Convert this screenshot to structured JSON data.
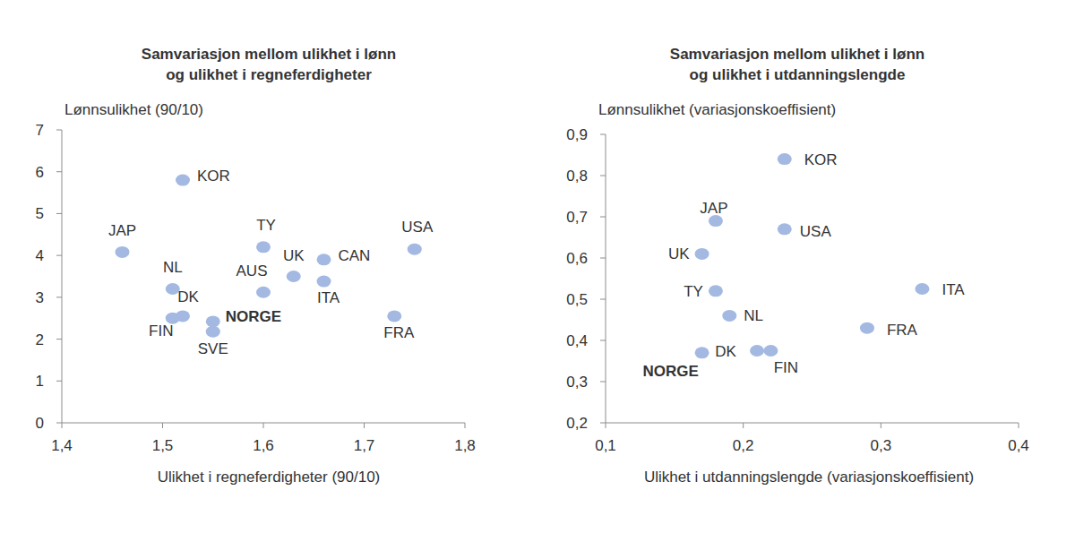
{
  "chart_data": [
    {
      "type": "scatter",
      "title": [
        "Samvariasjon mellom ulikhet i lønn",
        "og ulikhet i regneferdigheter"
      ],
      "y_label": "Lønnsulikhet (90/10)",
      "x_label": "Ulikhet i regneferdigheter (90/10)",
      "xlim": [
        1.4,
        1.8
      ],
      "xticks": [
        {
          "value": 1.4,
          "label": "1,4"
        },
        {
          "value": 1.5,
          "label": "1,5"
        },
        {
          "value": 1.6,
          "label": "1,6"
        },
        {
          "value": 1.7,
          "label": "1,7"
        },
        {
          "value": 1.8,
          "label": "1,8"
        }
      ],
      "ylim": [
        0,
        7
      ],
      "yticks": [
        0,
        1,
        2,
        3,
        4,
        5,
        6,
        7
      ],
      "grid": false,
      "color": "#a3b9e2",
      "marker": "circle",
      "labels": [
        "KOR",
        "JAP",
        "NL",
        "DK",
        "FIN",
        "NORGE",
        "SVE",
        "TY",
        "AUS",
        "UK",
        "CAN",
        "ITA",
        "USA",
        "FRA"
      ],
      "x": [
        1.52,
        1.46,
        1.51,
        1.52,
        1.51,
        1.55,
        1.55,
        1.6,
        1.6,
        1.63,
        1.66,
        1.66,
        1.75,
        1.73
      ],
      "values": [
        5.8,
        4.08,
        3.2,
        2.55,
        2.5,
        2.42,
        2.18,
        4.2,
        3.12,
        3.5,
        3.9,
        3.38,
        4.15,
        2.55
      ]
    },
    {
      "type": "scatter",
      "title": [
        "Samvariasjon mellom ulikhet i lønn",
        "og ulikhet i utdanningslengde"
      ],
      "y_label": "Lønnsulikhet (variasjonskoeffisient)",
      "x_label": "Ulikhet i utdanningslengde (variasjonskoeffisient)",
      "xlim": [
        0.1,
        0.4
      ],
      "xticks": [
        {
          "value": 0.1,
          "label": "0,1"
        },
        {
          "value": 0.2,
          "label": "0,2"
        },
        {
          "value": 0.3,
          "label": "0,3"
        },
        {
          "value": 0.4,
          "label": "0,4"
        }
      ],
      "ylim": [
        0.2,
        0.9
      ],
      "yticks": [
        {
          "value": 0.2,
          "label": "0,2"
        },
        {
          "value": 0.3,
          "label": "0,3"
        },
        {
          "value": 0.4,
          "label": "0,4"
        },
        {
          "value": 0.5,
          "label": "0,5"
        },
        {
          "value": 0.6,
          "label": "0,6"
        },
        {
          "value": 0.7,
          "label": "0,7"
        },
        {
          "value": 0.8,
          "label": "0,8"
        },
        {
          "value": 0.9,
          "label": "0,9"
        }
      ],
      "grid": false,
      "color": "#a3b9e2",
      "marker": "circle",
      "labels": [
        "KOR",
        "JAP",
        "USA",
        "UK",
        "TY",
        "NL",
        "ITA",
        "FRA",
        "NORGE",
        "DK",
        "FIN"
      ],
      "x": [
        0.23,
        0.18,
        0.23,
        0.17,
        0.18,
        0.19,
        0.33,
        0.29,
        0.17,
        0.21,
        0.22
      ],
      "values": [
        0.84,
        0.69,
        0.67,
        0.61,
        0.52,
        0.46,
        0.525,
        0.43,
        0.37,
        0.375,
        0.375
      ]
    }
  ]
}
